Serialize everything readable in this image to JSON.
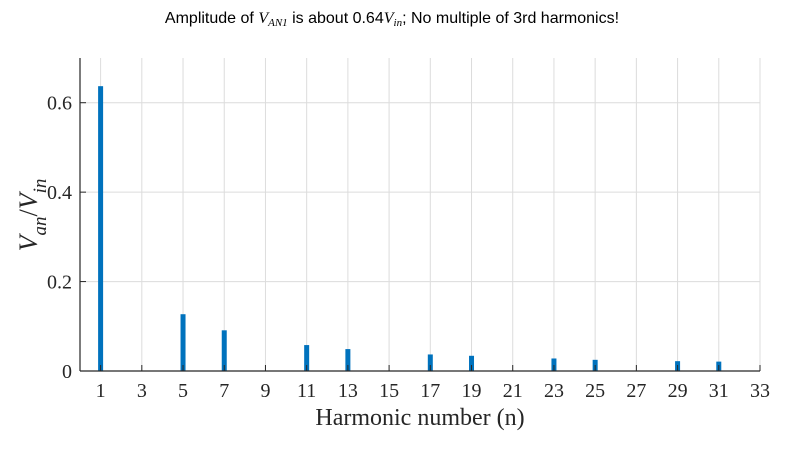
{
  "chart_data": {
    "type": "bar",
    "title": {
      "prefix": "Amplitude of ",
      "var1": "V",
      "var1_sub": "AN1",
      "mid": " is about 0.64",
      "var2": "V",
      "var2_sub": "in",
      "suffix": "; No multiple of 3rd harmonics!"
    },
    "xlabel": "Harmonic number (n)",
    "ylabel": {
      "num": "V",
      "num_sub": "an",
      "slash": "/",
      "den": "V",
      "den_sub": "in"
    },
    "xlim": [
      0,
      33
    ],
    "ylim": [
      0,
      0.7
    ],
    "x_ticks": [
      1,
      3,
      5,
      7,
      9,
      11,
      13,
      15,
      17,
      19,
      21,
      23,
      25,
      27,
      29,
      31,
      33
    ],
    "y_ticks": [
      0,
      0.2,
      0.4,
      0.6
    ],
    "y_tick_labels": [
      "0",
      "0.2",
      "0.4",
      "0.6"
    ],
    "grid": true,
    "bar_color": "#0072BD",
    "x": [
      1,
      5,
      7,
      11,
      13,
      17,
      19,
      23,
      25,
      29,
      31
    ],
    "values": [
      0.637,
      0.127,
      0.091,
      0.058,
      0.049,
      0.037,
      0.034,
      0.028,
      0.025,
      0.022,
      0.021
    ]
  }
}
